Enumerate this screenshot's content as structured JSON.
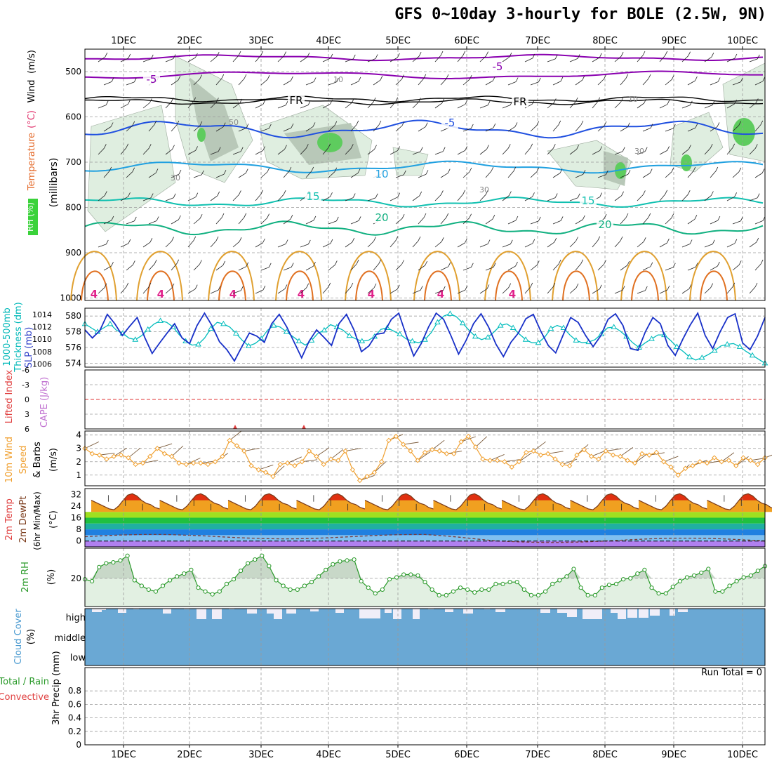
{
  "title": "GFS 0~10day 3-hourly for BOLE (2.5W, 9N)",
  "run_total": "Run Total = 0",
  "colors": {
    "grid": "#9a9a9a",
    "thickness": "#00bcbc",
    "slp": "#1830c8",
    "wind10m": "#f0a030",
    "rh2m": "#2a9a2a",
    "cloud": "#6aa8d4",
    "temp5": "#8a00b0",
    "temp_fr": "#000000",
    "temp_m5": "#2050e0",
    "temp_10": "#20a0e0",
    "temp_15": "#10c0b0",
    "temp_20": "#10b080",
    "temp_warm": "#e0a030",
    "temp_hot": "#e07020"
  },
  "chart_data": [
    {
      "id": "cross-section",
      "type": "contour",
      "xticks": [
        "1DEC",
        "2DEC",
        "3DEC",
        "4DEC",
        "5DEC",
        "6DEC",
        "7DEC",
        "8DEC",
        "9DEC",
        "10DEC"
      ],
      "ylabel_parts": [
        "RH (%)",
        "Temperature",
        "(°C)",
        "Wind",
        "(m/s)"
      ],
      "ylabel_units": "(millibars)",
      "yticks": [
        "500",
        "600",
        "700",
        "800",
        "900",
        "1000"
      ],
      "contour_labels": [
        {
          "text": "-5",
          "color": "#8a00b0"
        },
        {
          "text": "-5",
          "color": "#8a00b0"
        },
        {
          "text": "FR",
          "color": "#000000"
        },
        {
          "text": "FR",
          "color": "#000000"
        },
        {
          "text": "-5",
          "color": "#2050e0"
        },
        {
          "text": "10",
          "color": "#20a0e0"
        },
        {
          "text": "15",
          "color": "#10c0b0"
        },
        {
          "text": "15",
          "color": "#10c0b0"
        },
        {
          "text": "20",
          "color": "#10b080"
        },
        {
          "text": "20",
          "color": "#10b080"
        },
        {
          "text": "30",
          "color": "#888888"
        },
        {
          "text": "30",
          "color": "#888888"
        },
        {
          "text": "30",
          "color": "#888888"
        },
        {
          "text": "50",
          "color": "#888888"
        },
        {
          "text": "10",
          "color": "#888888"
        },
        {
          "text": "10",
          "color": "#888888"
        }
      ]
    },
    {
      "id": "thickness-slp",
      "type": "line",
      "ylabel_left": [
        "1000-500mb",
        "Thickness (dm)"
      ],
      "ylabel_right": "SLP (mb)",
      "yticks_left": [
        "580",
        "578",
        "576",
        "574"
      ],
      "yticks_right": [
        "1014",
        "1012",
        "1010",
        "1008",
        "1006"
      ],
      "ylim_left": [
        573.5,
        581
      ],
      "ylim_right": [
        1005.5,
        1015
      ],
      "series": [
        {
          "name": "1000-500mb Thickness (dm)",
          "axis": "left",
          "values": [
            579,
            578.5,
            578,
            578.5,
            579,
            578.2,
            577.8,
            577.2,
            577,
            577.5,
            578.3,
            579,
            579.4,
            579.2,
            578.6,
            577.6,
            576.8,
            576.3,
            576.4,
            577.2,
            578.4,
            579.2,
            579,
            578.6,
            577.8,
            576.9,
            576.2,
            576.5,
            577.1,
            578.2,
            578.8,
            578.6,
            578,
            577.4,
            576.8,
            576.3,
            576.9,
            577.8,
            578.2,
            578.9,
            578.6,
            578.2,
            577.5,
            577.1,
            576.8,
            576.9,
            577.4,
            578.3,
            578.5,
            578.1,
            577.7,
            577.1,
            576.8,
            576.6,
            577,
            577.9,
            579.2,
            580,
            580.3,
            579.9,
            579.1,
            578.2,
            577.4,
            577,
            577.3,
            578,
            578.8,
            579,
            578.5,
            577.7,
            577,
            576.6,
            576.6,
            577.3,
            578.4,
            578.8,
            578.5,
            577.6,
            576.9,
            576.6,
            576.7,
            577,
            577.7,
            578.5,
            578.6,
            578.1,
            577.4,
            576.6,
            576,
            576.6,
            577.1,
            577.6,
            577.6,
            576.9,
            576.1,
            575.5,
            574.8,
            574.4,
            574.7,
            575.1,
            575.6,
            576.2,
            576.4,
            576.5,
            576.1,
            575.5,
            575,
            574.5,
            574
          ]
        },
        {
          "name": "SLP (mb)",
          "axis": "right",
          "values": [
            1011.5,
            1010.2,
            1011.4,
            1014,
            1012.5,
            1010.6,
            1012.1,
            1013.5,
            1010.3,
            1007.7,
            1009.4,
            1011,
            1012.5,
            1010.2,
            1009.3,
            1012.2,
            1014.2,
            1012.2,
            1009.6,
            1008.3,
            1006.5,
            1008.8,
            1011,
            1010.5,
            1009.5,
            1012.5,
            1014,
            1012,
            1009.5,
            1007,
            1009.7,
            1011.5,
            1010.3,
            1009,
            1012.5,
            1014,
            1011.5,
            1008,
            1008.9,
            1010.8,
            1011,
            1013.2,
            1014.2,
            1010.6,
            1007.3,
            1009.3,
            1012,
            1014.2,
            1013.2,
            1010.5,
            1007.6,
            1009.8,
            1012.5,
            1014.1,
            1012,
            1009.2,
            1007.2,
            1009.5,
            1011,
            1013.3,
            1014,
            1011.3,
            1009,
            1007.8,
            1010.7,
            1013.5,
            1012.7,
            1010.6,
            1008.8,
            1010.5,
            1013.2,
            1014.1,
            1012.2,
            1008.5,
            1008.2,
            1011.2,
            1013.5,
            1012.5,
            1009,
            1007.4,
            1010,
            1012.3,
            1014.2,
            1010.6,
            1008.5,
            1011.2,
            1013.5,
            1014.1,
            1009.4,
            1008.3,
            1010.5,
            1013.5
          ]
        }
      ]
    },
    {
      "id": "li-cape",
      "type": "line",
      "ylabel_left": "Lifted Index",
      "ylabel_right": "CAPE (J/kg)",
      "yticks": [
        "-6",
        "-3",
        "0",
        "3",
        "6"
      ],
      "ylim": [
        -6,
        6
      ]
    },
    {
      "id": "wind10m",
      "type": "line",
      "ylabel": [
        "10m Wind",
        "Speed",
        "& Barbs",
        "(m/s)"
      ],
      "yticks": [
        "4",
        "3",
        "2",
        "1"
      ],
      "ylim": [
        0.2,
        4.3
      ],
      "series": [
        {
          "name": "10m Wind Speed",
          "values": [
            3.0,
            2.6,
            2.5,
            2.2,
            2.4,
            2.5,
            2.3,
            1.8,
            1.9,
            2.4,
            3.0,
            2.6,
            2.4,
            1.9,
            1.8,
            1.9,
            1.9,
            1.8,
            2.0,
            2.4,
            3.6,
            3.2,
            2.8,
            1.7,
            1.4,
            1.2,
            0.9,
            1.8,
            1.9,
            1.7,
            2.0,
            2.8,
            2.4,
            1.8,
            2.2,
            2.1,
            2.8,
            1.4,
            0.6,
            0.9,
            1.2,
            2.0,
            3.6,
            3.9,
            3.3,
            2.8,
            2.1,
            2.7,
            2.9,
            2.8,
            2.6,
            2.6,
            3.5,
            3.9,
            3.1,
            2.2,
            2.1,
            2.1,
            2.0,
            1.6,
            2.0,
            2.7,
            2.8,
            2.5,
            2.6,
            2.2,
            1.8,
            1.7,
            2.5,
            2.9,
            2.4,
            2.2,
            2.8,
            2.5,
            2.4,
            2.1,
            1.9,
            2.6,
            2.5,
            2.7,
            2.0,
            1.6,
            1.0,
            1.5,
            1.7,
            2.0,
            1.9,
            2.3,
            2.0,
            2.1,
            1.7,
            2.3,
            2.1,
            1.8,
            2.3
          ]
        }
      ]
    },
    {
      "id": "temp2m",
      "type": "area",
      "ylabel": [
        "2m Temp",
        "2m DewPt",
        "(6hr Min/Max)",
        "(°C)"
      ],
      "yticks": [
        "32",
        "24",
        "16",
        "8",
        "0"
      ],
      "ylim": [
        -4,
        36
      ],
      "series": [
        {
          "name": "2m Temp",
          "values": [
            28,
            26.5,
            25,
            23.5,
            22,
            21.5,
            24,
            28,
            31.5,
            32.5,
            31,
            28,
            26,
            25,
            23,
            22
          ]
        },
        {
          "name": "2m DewPt",
          "values": [
            4,
            3.8,
            3.5,
            3.2,
            3,
            2.5,
            2.8,
            3,
            2.5,
            2,
            1,
            0.5,
            0,
            -1,
            -1.5,
            -1
          ]
        }
      ]
    },
    {
      "id": "rh2m",
      "type": "area",
      "ylabel": [
        "2m RH",
        "(%)"
      ],
      "yticks": [
        "20"
      ],
      "ylim": [
        5,
        36
      ],
      "series": [
        {
          "name": "2m RH",
          "values": [
            19.5,
            18.5,
            26,
            28,
            28.5,
            29.5,
            32,
            19,
            16,
            14,
            13,
            16,
            19,
            21,
            22.5,
            24.5,
            15,
            13,
            11.5,
            13,
            17,
            19.5,
            24,
            28,
            30,
            32,
            26.5,
            19,
            16,
            14,
            14,
            16,
            18,
            21,
            24.5,
            27.5,
            29,
            29.5,
            30,
            18.5,
            15,
            12,
            14,
            19.5,
            20.5,
            22,
            22,
            21.5,
            18,
            14,
            11,
            11,
            13,
            15,
            14,
            12.5,
            14,
            14,
            17,
            17,
            18,
            18,
            14,
            11,
            11,
            13,
            17,
            19,
            21,
            25,
            15,
            11,
            11,
            15,
            16.5,
            17,
            19.5,
            20,
            22.5,
            24.5,
            15,
            12,
            12,
            15.5,
            18.5,
            20.5,
            21.5,
            23,
            25,
            13,
            13,
            16,
            18.5,
            20.5,
            21.5,
            24,
            26.5
          ]
        }
      ]
    },
    {
      "id": "cloud",
      "type": "bar",
      "ylabel": [
        "Cloud Cover",
        "(%)"
      ],
      "levels": [
        "high",
        "middle",
        "low"
      ]
    },
    {
      "id": "precip",
      "type": "bar",
      "ylabel_left": [
        "Total / Rain",
        "Convective"
      ],
      "ylabel": [
        "3hr Precip",
        "(mm)"
      ],
      "yticks": [
        "0.8",
        "0.6",
        "0.4",
        "0.2",
        "0"
      ],
      "ylim": [
        0,
        1
      ],
      "values": []
    }
  ]
}
